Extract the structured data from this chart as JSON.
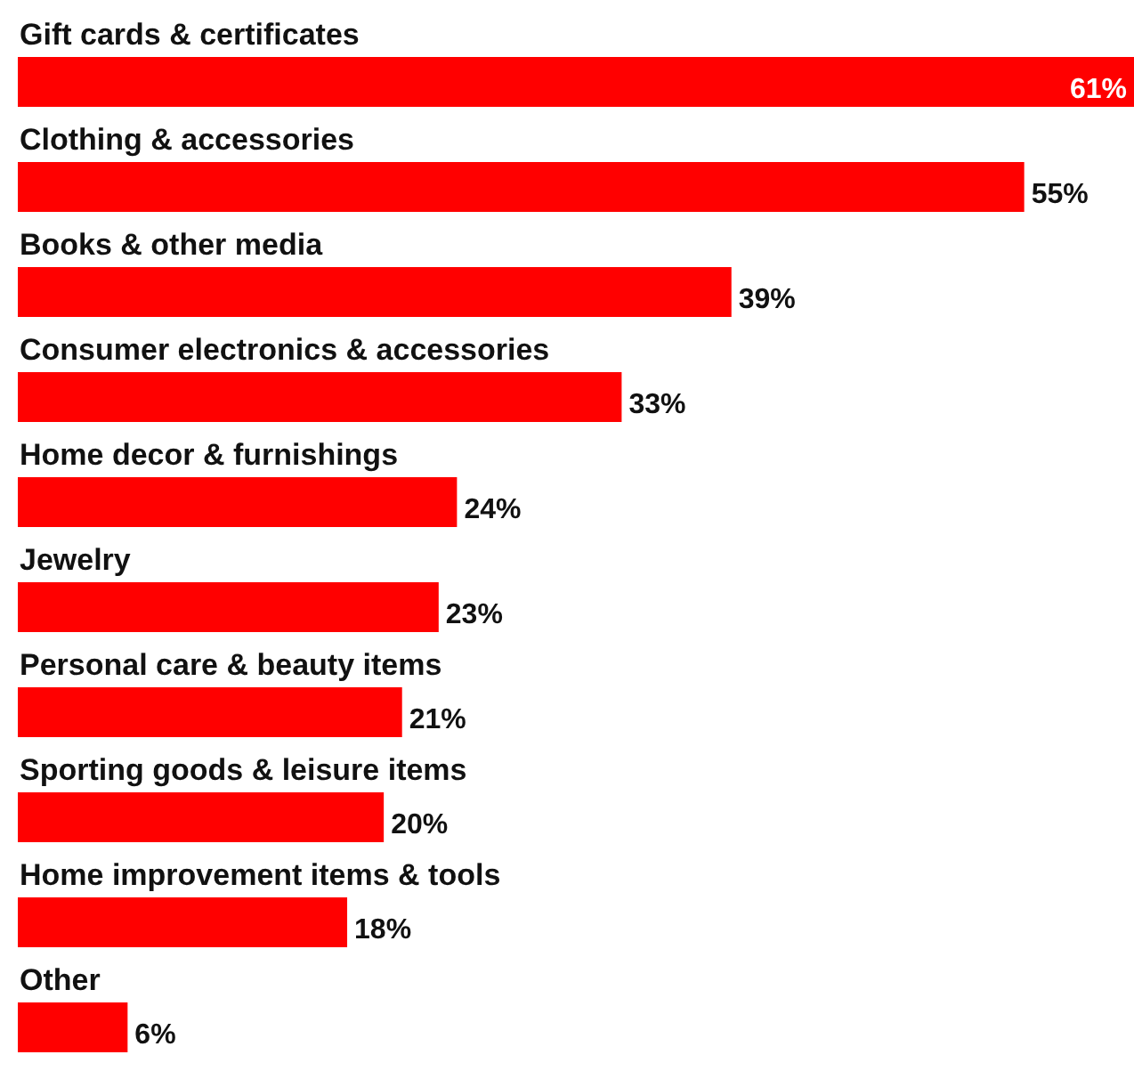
{
  "chart_data": {
    "type": "bar",
    "orientation": "horizontal",
    "categories": [
      "Gift cards & certificates",
      "Clothing & accessories",
      "Books & other media",
      "Consumer electronics & accessories",
      "Home decor & furnishings",
      "Jewelry",
      "Personal care & beauty items",
      "Sporting goods & leisure items",
      "Home improvement items & tools",
      "Other"
    ],
    "values": [
      61,
      55,
      39,
      33,
      24,
      23,
      21,
      20,
      18,
      6
    ],
    "value_labels": [
      "61%",
      "55%",
      "39%",
      "33%",
      "24%",
      "23%",
      "21%",
      "20%",
      "18%",
      "6%"
    ],
    "color": "#ff0000",
    "grid": false,
    "legend": false
  }
}
